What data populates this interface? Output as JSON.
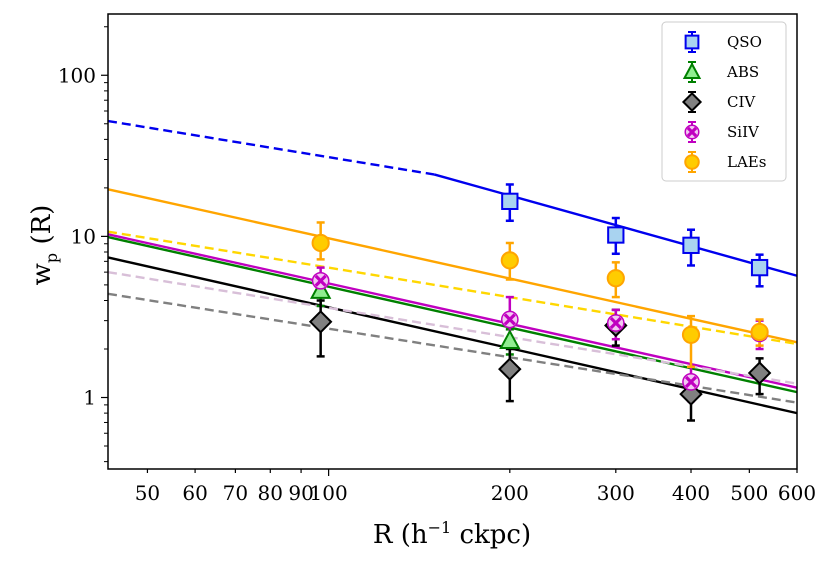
{
  "chart_data": {
    "type": "scatter",
    "title": "",
    "xlabel": "R (h⁻¹ ckpc)",
    "ylabel": "wₚ (R)",
    "xscale": "log",
    "yscale": "log",
    "xlim": [
      43,
      600
    ],
    "ylim": [
      0.36,
      240
    ],
    "xticks": [
      50,
      60,
      70,
      80,
      90,
      100,
      200,
      300,
      400,
      500,
      600
    ],
    "xtick_labels": [
      "50",
      "60",
      "70",
      "80",
      "90",
      "100",
      "200",
      "300",
      "400",
      "500",
      "600"
    ],
    "yticks": [
      1,
      10,
      100
    ],
    "ytick_labels": [
      "1",
      "10",
      "100"
    ],
    "legend_position": "top-right",
    "series": [
      {
        "name": "QSO",
        "marker": "square",
        "color": "#0000ee",
        "fill": "#a9d3f0",
        "points": [
          {
            "x": 200,
            "y": 16.5,
            "lo": 12.5,
            "hi": 21
          },
          {
            "x": 300,
            "y": 10.2,
            "lo": 7.8,
            "hi": 13
          },
          {
            "x": 400,
            "y": 8.8,
            "lo": 6.6,
            "hi": 11
          },
          {
            "x": 520,
            "y": 6.4,
            "lo": 4.9,
            "hi": 7.7
          }
        ]
      },
      {
        "name": "ABS",
        "marker": "triangle",
        "color": "#008000",
        "fill": "#90ee90",
        "points": [
          {
            "x": 97,
            "y": 4.6,
            "lo": 3.7,
            "hi": 5.5
          },
          {
            "x": 200,
            "y": 2.25,
            "lo": 1.85,
            "hi": 2.65
          }
        ]
      },
      {
        "name": "CIV",
        "marker": "diamond",
        "color": "#000000",
        "fill": "#808080",
        "points": [
          {
            "x": 97,
            "y": 2.95,
            "lo": 1.8,
            "hi": 4.0
          },
          {
            "x": 200,
            "y": 1.5,
            "lo": 0.95,
            "hi": 2.0
          },
          {
            "x": 300,
            "y": 2.8,
            "lo": 2.1,
            "hi": 3.5
          },
          {
            "x": 400,
            "y": 1.05,
            "lo": 0.72,
            "hi": 1.3
          },
          {
            "x": 520,
            "y": 1.42,
            "lo": 1.05,
            "hi": 1.75
          }
        ]
      },
      {
        "name": "SiIV",
        "marker": "x-circle",
        "color": "#c000c0",
        "fill": "#f2c8f2",
        "points": [
          {
            "x": 97,
            "y": 5.3,
            "lo": 4.3,
            "hi": 6.4
          },
          {
            "x": 200,
            "y": 3.05,
            "lo": 2.25,
            "hi": 4.2
          },
          {
            "x": 300,
            "y": 2.9,
            "lo": 2.3,
            "hi": 3.5
          },
          {
            "x": 400,
            "y": 1.25,
            "lo": 0.95,
            "hi": 1.55
          },
          {
            "x": 520,
            "y": 2.5,
            "lo": 2.0,
            "hi": 3.0
          }
        ]
      },
      {
        "name": "LAEs",
        "marker": "circle",
        "color": "#ffa500",
        "fill": "#ffcc00",
        "points": [
          {
            "x": 97,
            "y": 9.1,
            "lo": 7.2,
            "hi": 12.2
          },
          {
            "x": 200,
            "y": 7.1,
            "lo": 5.4,
            "hi": 9.1
          },
          {
            "x": 300,
            "y": 5.5,
            "lo": 4.2,
            "hi": 6.9
          },
          {
            "x": 400,
            "y": 2.45,
            "lo": 1.55,
            "hi": 3.2
          },
          {
            "x": 520,
            "y": 2.55,
            "lo": 2.1,
            "hi": 3.05
          }
        ]
      }
    ],
    "fit_lines": [
      {
        "name": "QSO-extrapolated",
        "color": "#0000ee",
        "dash": "dashed",
        "x": [
          43,
          150
        ],
        "y": [
          52,
          24.2
        ]
      },
      {
        "name": "QSO-fit",
        "color": "#0000ee",
        "dash": "solid",
        "x": [
          150,
          600
        ],
        "y": [
          24.2,
          5.7
        ]
      },
      {
        "name": "LAEs-fit",
        "color": "#ffa500",
        "dash": "solid",
        "x": [
          43,
          600
        ],
        "y": [
          19.6,
          2.2
        ]
      },
      {
        "name": "LAEs-alt",
        "color": "#ffd700",
        "dash": "dashed",
        "x": [
          43,
          600
        ],
        "y": [
          10.7,
          2.15
        ]
      },
      {
        "name": "SiIV-fit",
        "color": "#c000c0",
        "dash": "solid",
        "x": [
          43,
          600
        ],
        "y": [
          10.3,
          1.15
        ]
      },
      {
        "name": "ABS-fit",
        "color": "#008000",
        "dash": "solid",
        "x": [
          43,
          600
        ],
        "y": [
          9.9,
          1.08
        ]
      },
      {
        "name": "CIV-fit",
        "color": "#000000",
        "dash": "solid",
        "x": [
          43,
          600
        ],
        "y": [
          7.4,
          0.8
        ]
      },
      {
        "name": "SiIV-alt",
        "color": "#d8bfd8",
        "dash": "dashed",
        "x": [
          43,
          600
        ],
        "y": [
          6.0,
          1.22
        ]
      },
      {
        "name": "CIV-alt",
        "color": "#808080",
        "dash": "dashed",
        "x": [
          43,
          600
        ],
        "y": [
          4.4,
          0.93
        ]
      }
    ]
  }
}
